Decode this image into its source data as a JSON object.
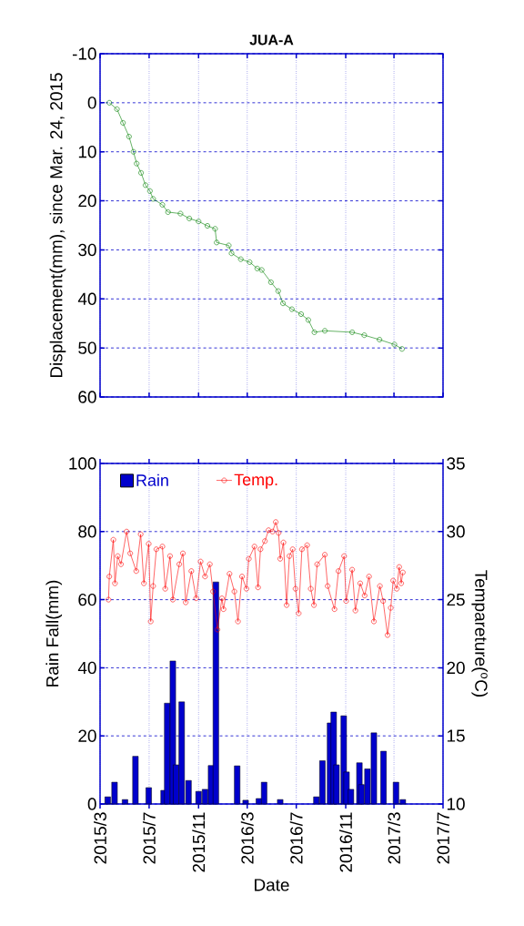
{
  "chart_data": [
    {
      "type": "line",
      "title": "JUA-A",
      "ylabel": "Displacement(mm), since Mar. 24, 2015",
      "color": "#008000",
      "marker": "circle",
      "grid": true,
      "tick_labels": "y",
      "xlim": [
        "2015-03",
        "2017-07"
      ],
      "ylim": [
        60,
        -10
      ],
      "yticks": [
        -10,
        0,
        10,
        20,
        30,
        40,
        50,
        60
      ],
      "xticks": [
        {
          "value": "2015-03",
          "label": null
        },
        {
          "value": "2015-07",
          "label": null
        },
        {
          "value": "2015-11",
          "label": null
        },
        {
          "value": "2016-03",
          "label": null
        },
        {
          "value": "2016-07",
          "label": null
        },
        {
          "value": "2016-11",
          "label": null
        },
        {
          "value": "2017-03",
          "label": null
        },
        {
          "value": "2017-07",
          "label": null
        }
      ],
      "x": [
        "2015-03-24",
        "2015-04-12",
        "2015-04-27",
        "2015-05-12",
        "2015-05-23",
        "2015-05-31",
        "2015-06-11",
        "2015-06-22",
        "2015-07-03",
        "2015-07-11",
        "2015-08-03",
        "2015-08-17",
        "2015-09-17",
        "2015-10-09",
        "2015-11-01",
        "2015-11-23",
        "2015-12-12",
        "2015-12-16",
        "2016-01-15",
        "2016-01-22",
        "2016-02-14",
        "2016-03-07",
        "2016-03-26",
        "2016-04-06",
        "2016-04-29",
        "2016-05-17",
        "2016-05-29",
        "2016-06-20",
        "2016-07-13",
        "2016-07-31",
        "2016-08-15",
        "2016-09-10",
        "2016-11-17",
        "2016-12-17",
        "2017-01-24",
        "2017-03-02",
        "2017-03-21"
      ],
      "values": [
        0,
        1.3,
        4.1,
        6.9,
        10.0,
        12.4,
        14.3,
        16.8,
        18.0,
        19.6,
        20.8,
        22.3,
        22.6,
        23.6,
        24.2,
        25.1,
        25.7,
        28.5,
        29.1,
        30.7,
        31.9,
        32.5,
        33.8,
        34.1,
        36.6,
        38.4,
        40.9,
        42.1,
        43.1,
        44.3,
        46.8,
        46.5,
        46.8,
        47.4,
        48.3,
        49.3,
        50.2
      ]
    },
    {
      "type": "bar",
      "xlabel": "Date",
      "ylabel": "Rain Fall(mm)",
      "y2label": "Tempareture($^{o}$C)",
      "grid": true,
      "legend": "top left",
      "xlim": [
        "2015-03",
        "2017-07"
      ],
      "ylim": [
        0,
        100
      ],
      "yticks": [
        0,
        20,
        40,
        60,
        80,
        100
      ],
      "y2lim": [
        10,
        35
      ],
      "y2ticks": [
        10,
        15,
        20,
        25,
        30,
        35
      ],
      "xticks": [
        {
          "value": "2015-03",
          "label": "2015/3"
        },
        {
          "value": "2015-07",
          "label": "2015/7"
        },
        {
          "value": "2015-11",
          "label": "2015/11"
        },
        {
          "value": "2016-03",
          "label": "2016/3"
        },
        {
          "value": "2016-07",
          "label": "2016/7"
        },
        {
          "value": "2016-11",
          "label": "2016/11"
        },
        {
          "value": "2017-03",
          "label": "2017/3"
        },
        {
          "value": "2017-07",
          "label": "2017/7"
        }
      ],
      "series": [
        {
          "name": "Rain",
          "type": "bar",
          "color": "#0000cc",
          "x": [
            "2015-03-20",
            "2015-04-06",
            "2015-05-02",
            "2015-05-28",
            "2015-06-30",
            "2015-08-06",
            "2015-08-15",
            "2015-08-29",
            "2015-09-06",
            "2015-09-20",
            "2015-10-07",
            "2015-11-01",
            "2015-11-17",
            "2015-12-02",
            "2015-12-14",
            "2016-02-05",
            "2016-02-26",
            "2016-03-30",
            "2016-04-12",
            "2016-05-22",
            "2016-08-20",
            "2016-09-04",
            "2016-09-23",
            "2016-10-02",
            "2016-10-09",
            "2016-10-27",
            "2016-11-03",
            "2016-11-14",
            "2016-12-05",
            "2016-12-10",
            "2016-12-25",
            "2017-01-10",
            "2017-02-03",
            "2017-03-06",
            "2017-03-23"
          ],
          "values": [
            2.1,
            6.4,
            1.3,
            14.0,
            4.8,
            4.0,
            29.6,
            42.0,
            11.5,
            30.0,
            6.9,
            3.7,
            4.3,
            11.3,
            65.2,
            11.2,
            1.1,
            1.6,
            6.4,
            1.3,
            2.1,
            12.7,
            23.8,
            27.0,
            11.5,
            25.9,
            9.4,
            4.3,
            12.1,
            5.7,
            10.3,
            20.9,
            15.5,
            6.4,
            1.3
          ]
        },
        {
          "name": "Temp.",
          "type": "line",
          "axis": "y2",
          "color": "#ff0000",
          "marker": "circle",
          "x": [
            "2015-03-22",
            "2015-03-24",
            "2015-04-03",
            "2015-04-07",
            "2015-04-14",
            "2015-04-22",
            "2015-05-06",
            "2015-05-15",
            "2015-05-30",
            "2015-06-10",
            "2015-06-18",
            "2015-06-30",
            "2015-07-05",
            "2015-07-11",
            "2015-07-19",
            "2015-08-03",
            "2015-08-10",
            "2015-08-22",
            "2015-08-29",
            "2015-09-14",
            "2015-09-23",
            "2015-09-30",
            "2015-10-14",
            "2015-10-26",
            "2015-11-06",
            "2015-11-17",
            "2015-11-29",
            "2015-12-07",
            "2015-12-18",
            "2015-12-29",
            "2016-01-02",
            "2016-01-17",
            "2016-01-29",
            "2016-02-07",
            "2016-02-17",
            "2016-02-28",
            "2016-03-05",
            "2016-03-19",
            "2016-03-28",
            "2016-04-03",
            "2016-04-14",
            "2016-04-23",
            "2016-05-03",
            "2016-05-11",
            "2016-05-18",
            "2016-05-22",
            "2016-05-30",
            "2016-06-07",
            "2016-06-14",
            "2016-06-22",
            "2016-06-29",
            "2016-07-07",
            "2016-07-15",
            "2016-07-28",
            "2016-08-06",
            "2016-08-14",
            "2016-08-22",
            "2016-09-10",
            "2016-09-17",
            "2016-10-04",
            "2016-10-14",
            "2016-10-28",
            "2016-11-02",
            "2016-11-17",
            "2016-11-25",
            "2016-12-07",
            "2016-12-18",
            "2016-12-29",
            "2017-01-10",
            "2017-01-25",
            "2017-02-02",
            "2017-02-13",
            "2017-02-21",
            "2017-02-27",
            "2017-03-08",
            "2017-03-14",
            "2017-03-19",
            "2017-03-23"
          ],
          "values": [
            25.0,
            26.7,
            29.4,
            26.2,
            28.2,
            27.6,
            30.0,
            28.4,
            27.1,
            29.8,
            26.2,
            29.1,
            23.4,
            26.0,
            28.7,
            28.9,
            25.8,
            28.2,
            25.0,
            27.6,
            28.4,
            24.8,
            27.1,
            25.1,
            27.8,
            26.7,
            27.6,
            25.6,
            22.8,
            25.1,
            24.3,
            26.9,
            25.6,
            23.4,
            26.7,
            25.8,
            28.0,
            28.9,
            25.9,
            28.7,
            29.3,
            30.1,
            30.0,
            30.7,
            29.9,
            28.0,
            29.2,
            24.6,
            28.2,
            28.7,
            25.8,
            24.0,
            28.7,
            29.0,
            25.8,
            24.6,
            27.6,
            28.3,
            26.0,
            24.3,
            27.1,
            28.2,
            24.9,
            27.2,
            24.2,
            26.2,
            25.3,
            26.7,
            23.4,
            26.0,
            24.9,
            22.4,
            24.4,
            26.4,
            25.8,
            27.4,
            26.2,
            27.0
          ]
        }
      ]
    }
  ]
}
